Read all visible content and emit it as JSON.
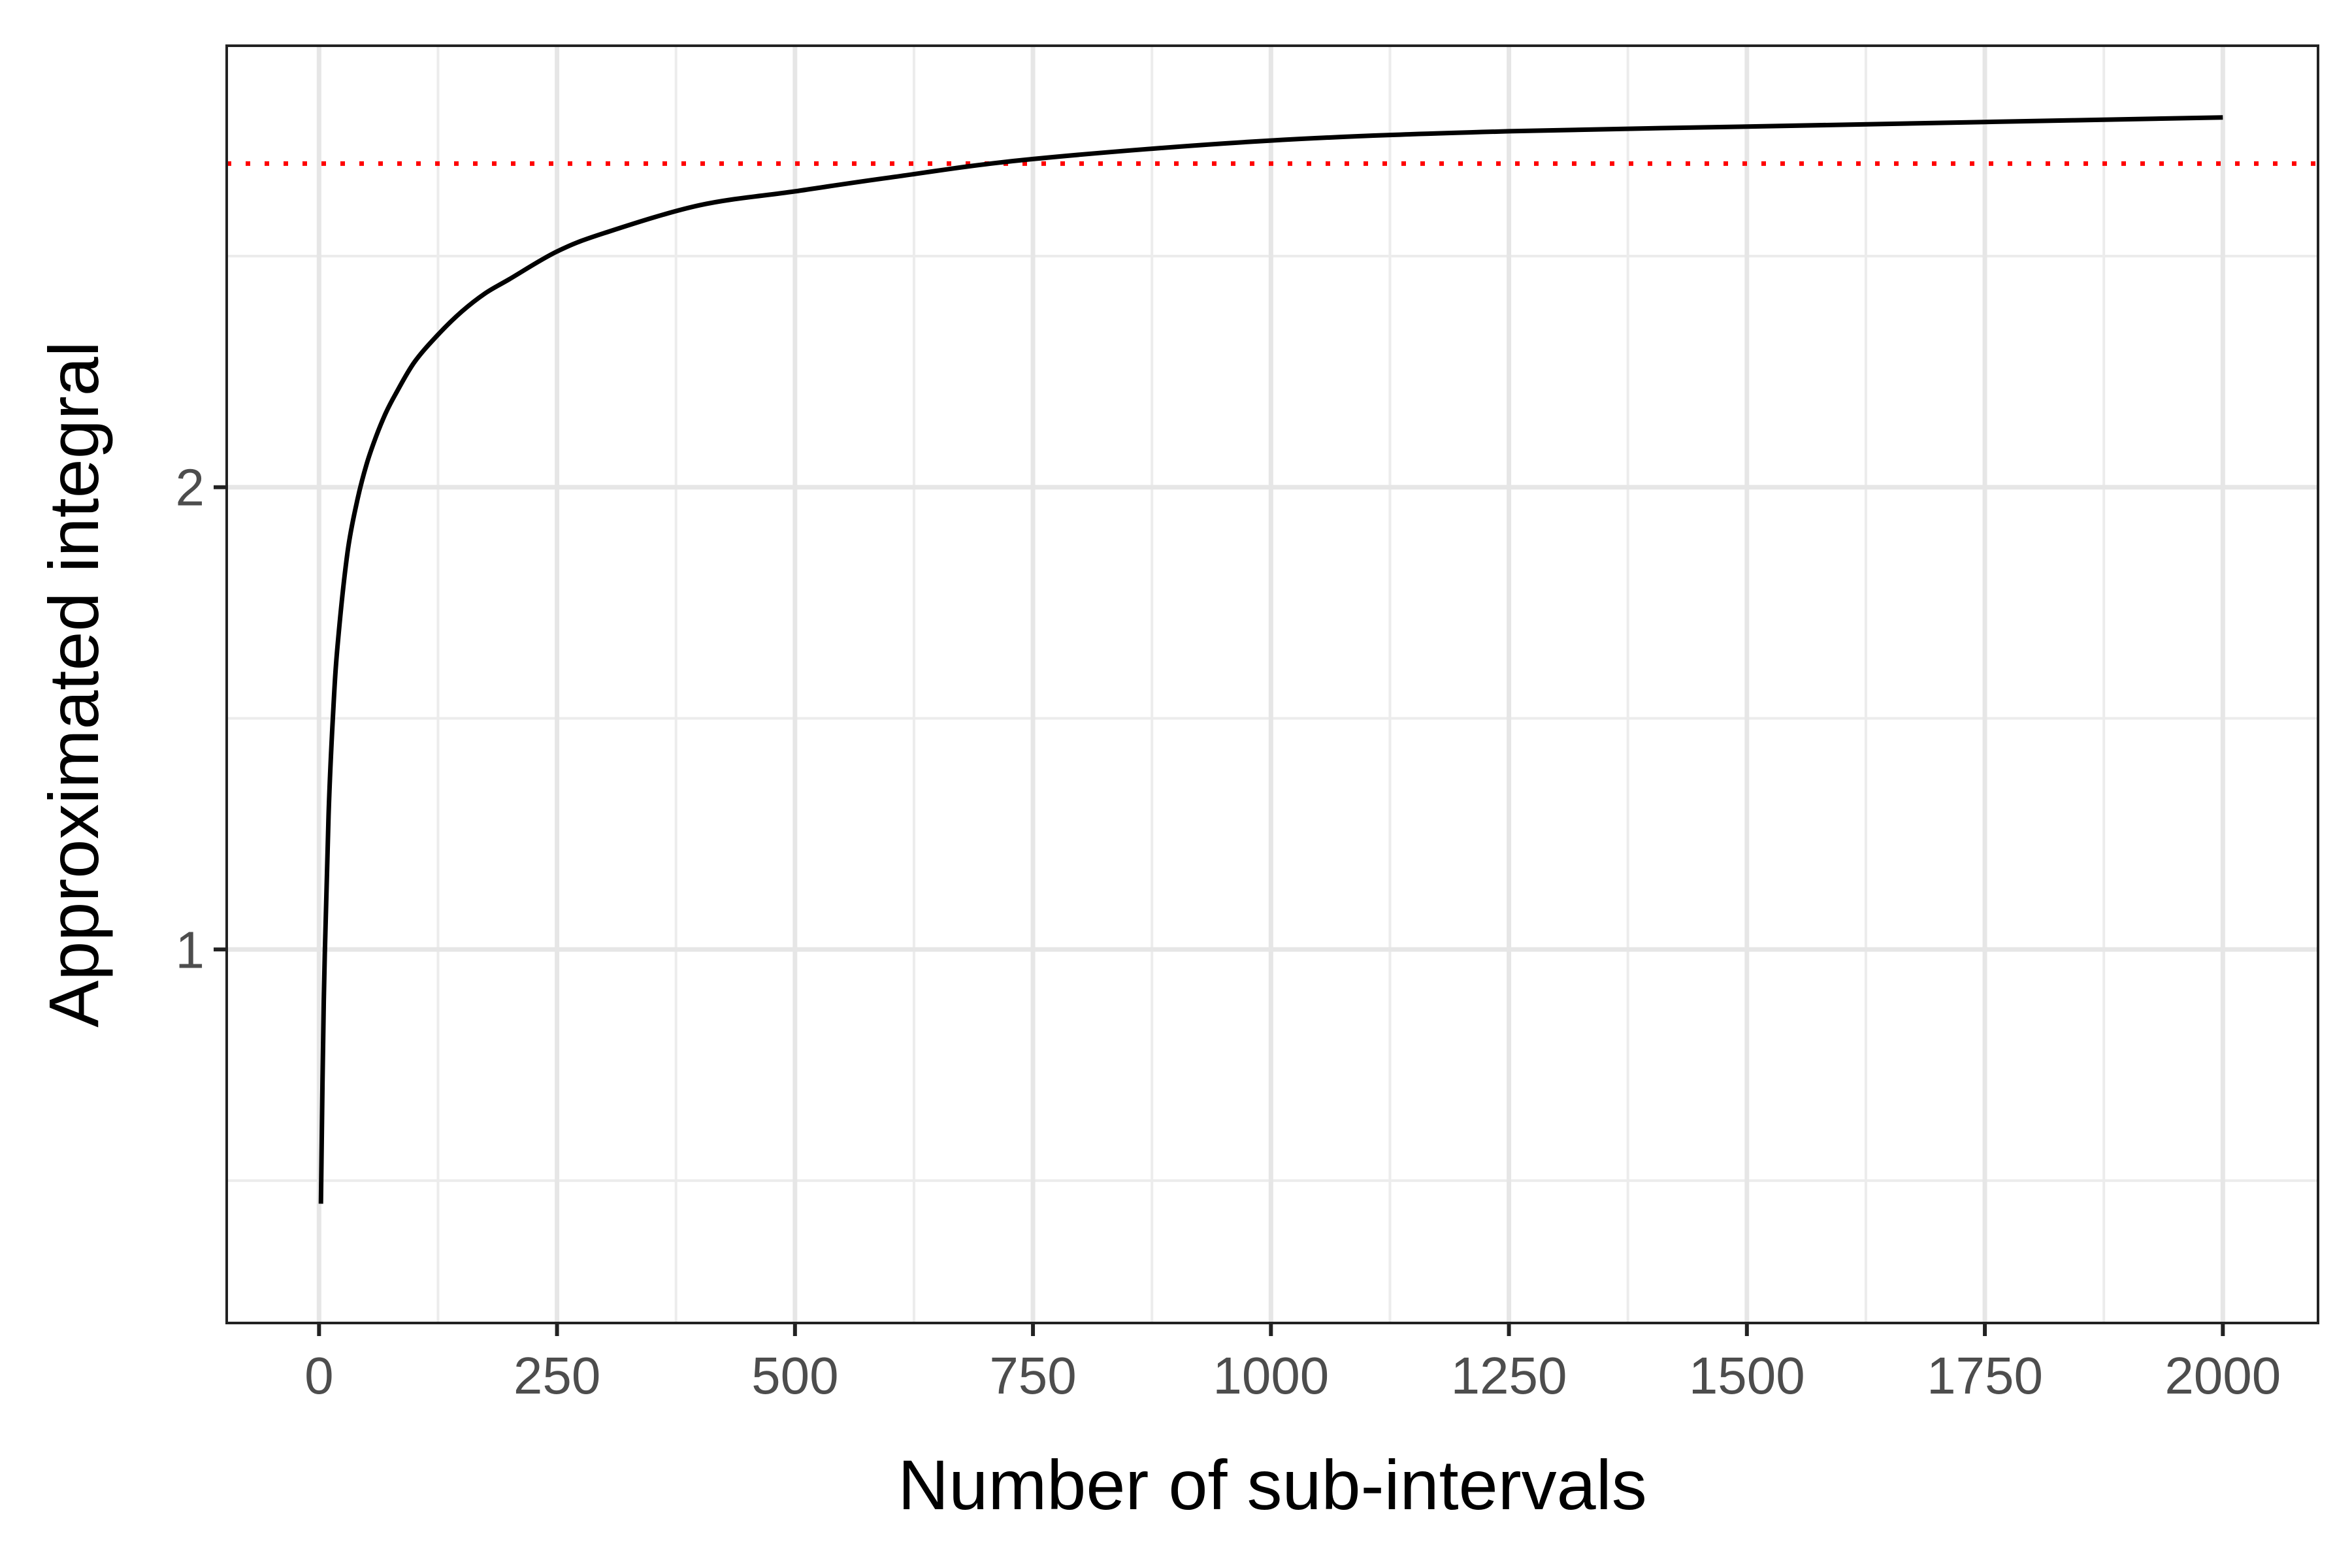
{
  "chart_data": {
    "type": "line",
    "xlabel": "Number of sub-intervals",
    "ylabel": "Approximated integral",
    "xlim": [
      -97,
      2100
    ],
    "ylim": [
      0.192,
      2.955
    ],
    "x_ticks": [
      0,
      250,
      500,
      750,
      1000,
      1250,
      1500,
      1750,
      2000
    ],
    "x_tick_labels": [
      "0",
      "250",
      "500",
      "750",
      "1000",
      "1250",
      "1500",
      "1750",
      "2000"
    ],
    "x_minor_ticks": [
      125,
      375,
      625,
      875,
      1125,
      1375,
      1625,
      1875
    ],
    "y_ticks": [
      1,
      2
    ],
    "y_tick_labels": [
      "1",
      "2"
    ],
    "y_minor_ticks": [
      0.5,
      1.5,
      2.5
    ],
    "grid": true,
    "series": [
      {
        "color": "#000000",
        "x": [
          2,
          5,
          10,
          15,
          20,
          30,
          40,
          50,
          60,
          70,
          80,
          100,
          125,
          150,
          175,
          200,
          250,
          300,
          400,
          500,
          600,
          750,
          1000,
          1250,
          1500,
          1750,
          2000
        ],
        "y": [
          0.45,
          0.89,
          1.29,
          1.52,
          1.67,
          1.86,
          1.97,
          2.05,
          2.11,
          2.16,
          2.2,
          2.27,
          2.33,
          2.38,
          2.42,
          2.45,
          2.51,
          2.55,
          2.61,
          2.64,
          2.67,
          2.71,
          2.75,
          2.77,
          2.78,
          2.79,
          2.8
        ]
      }
    ],
    "reference_lines": [
      {
        "orientation": "horizontal",
        "y": 2.7,
        "color": "#ff0000",
        "style": "dotted"
      }
    ]
  }
}
